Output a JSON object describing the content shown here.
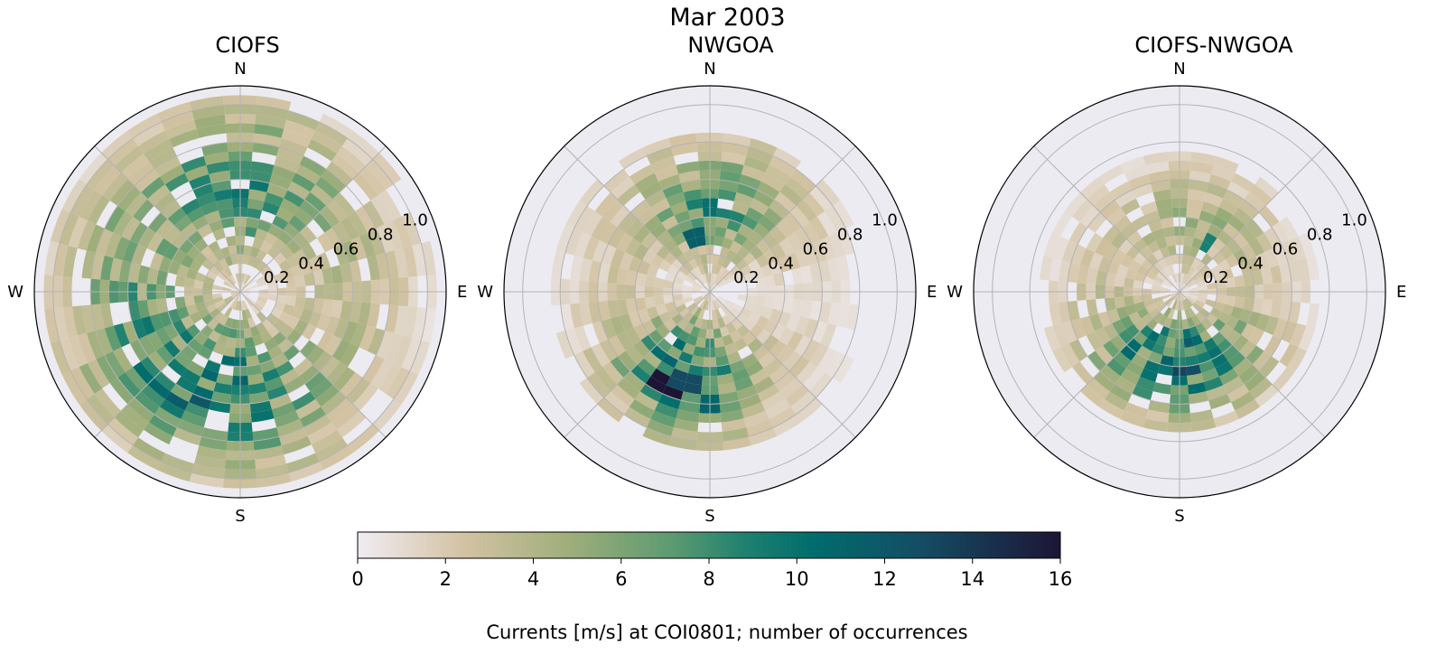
{
  "figure": {
    "suptitle": "Mar 2003",
    "colorbar_label": "Currents [m/s] at COI0801; number of occurrences"
  },
  "chart_data": [
    {
      "type": "heatmap",
      "subtype": "polar-rose",
      "title": "CIOFS",
      "direction_labels": [
        "N",
        "E",
        "S",
        "W"
      ],
      "radial_ticks": [
        0.2,
        0.4,
        0.6,
        0.8,
        1.0
      ],
      "radial_tick_labels": [
        "0.2",
        "0.4",
        "0.6",
        "0.8",
        "1.0"
      ],
      "rlim": [
        0,
        1.1
      ],
      "direction_bins": 36,
      "speed_bin_width": 0.05,
      "max_speed": 1.05,
      "profile": {
        "lobes": [
          {
            "dir": 225,
            "width": 60,
            "amp": 5.0
          },
          {
            "dir": 180,
            "width": 40,
            "amp": 4.0
          },
          {
            "dir": 330,
            "width": 80,
            "amp": 2.5
          },
          {
            "dir": 45,
            "width": 60,
            "amp": 2.0
          },
          {
            "dir": 0,
            "width": 30,
            "amp": 3.0
          }
        ],
        "peak_speed": 0.55,
        "speed_spread": 0.32,
        "inner_fill": 0.7,
        "outer_limit": 1.05
      },
      "peak_cells": [
        {
          "dir": 215,
          "speed": 0.55,
          "count": 9.5
        },
        {
          "dir": 225,
          "speed": 0.62,
          "count": 8.5
        },
        {
          "dir": 5,
          "speed": 0.65,
          "count": 8.0
        },
        {
          "dir": 250,
          "speed": 0.45,
          "count": 7.5
        }
      ],
      "grid": true
    },
    {
      "type": "heatmap",
      "subtype": "polar-rose",
      "title": "NWGOA",
      "direction_labels": [
        "N",
        "E",
        "S",
        "W"
      ],
      "radial_ticks": [
        0.2,
        0.4,
        0.6,
        0.8,
        1.0
      ],
      "radial_tick_labels": [
        "0.2",
        "0.4",
        "0.6",
        "0.8",
        "1.0"
      ],
      "rlim": [
        0,
        1.1
      ],
      "direction_bins": 36,
      "speed_bin_width": 0.05,
      "max_speed": 0.85,
      "profile": {
        "lobes": [
          {
            "dir": 200,
            "width": 30,
            "amp": 8.0
          },
          {
            "dir": 10,
            "width": 35,
            "amp": 6.0
          },
          {
            "dir": 150,
            "width": 40,
            "amp": 2.0
          },
          {
            "dir": 300,
            "width": 50,
            "amp": 2.0
          }
        ],
        "peak_speed": 0.45,
        "speed_spread": 0.25,
        "inner_fill": 0.8,
        "outer_limit": 0.85
      },
      "peak_cells": [
        {
          "dir": 205,
          "speed": 0.55,
          "count": 16.0
        },
        {
          "dir": 195,
          "speed": 0.5,
          "count": 13.0
        },
        {
          "dir": 180,
          "speed": 0.6,
          "count": 11.0
        },
        {
          "dir": 345,
          "speed": 0.3,
          "count": 11.5
        },
        {
          "dir": 0,
          "speed": 0.45,
          "count": 10.0
        }
      ],
      "grid": true
    },
    {
      "type": "heatmap",
      "subtype": "polar-rose",
      "title": "CIOFS-NWGOA",
      "direction_labels": [
        "N",
        "E",
        "S",
        "W"
      ],
      "radial_ticks": [
        0.2,
        0.4,
        0.6,
        0.8,
        1.0
      ],
      "radial_tick_labels": [
        "0.2",
        "0.4",
        "0.6",
        "0.8",
        "1.0"
      ],
      "rlim": [
        0,
        1.1
      ],
      "direction_bins": 36,
      "speed_bin_width": 0.05,
      "max_speed": 0.75,
      "profile": {
        "lobes": [
          {
            "dir": 200,
            "width": 45,
            "amp": 6.0
          },
          {
            "dir": 160,
            "width": 40,
            "amp": 4.5
          },
          {
            "dir": 30,
            "width": 45,
            "amp": 3.0
          },
          {
            "dir": 330,
            "width": 50,
            "amp": 2.0
          }
        ],
        "peak_speed": 0.38,
        "speed_spread": 0.22,
        "inner_fill": 0.85,
        "outer_limit": 0.75
      },
      "peak_cells": [
        {
          "dir": 220,
          "speed": 0.4,
          "count": 10.5
        },
        {
          "dir": 200,
          "speed": 0.45,
          "count": 10.0
        },
        {
          "dir": 150,
          "speed": 0.4,
          "count": 10.0
        },
        {
          "dir": 30,
          "speed": 0.3,
          "count": 9.0
        }
      ],
      "grid": true
    }
  ],
  "colorbar": {
    "min": 0,
    "max": 16,
    "ticks": [
      0,
      2,
      4,
      6,
      8,
      10,
      12,
      14,
      16
    ],
    "colormap_stops": [
      [
        0,
        "#f0ecf2"
      ],
      [
        0.15,
        "#d3c3a3"
      ],
      [
        0.3,
        "#9fae7a"
      ],
      [
        0.45,
        "#5b9a70"
      ],
      [
        0.55,
        "#1f8170"
      ],
      [
        0.65,
        "#006c6c"
      ],
      [
        0.8,
        "#144d64"
      ],
      [
        1.0,
        "#1d1535"
      ]
    ]
  },
  "colors": {
    "axes_face": "#ecebf2",
    "grid": "#b3b3b3",
    "spine": "#000000"
  }
}
